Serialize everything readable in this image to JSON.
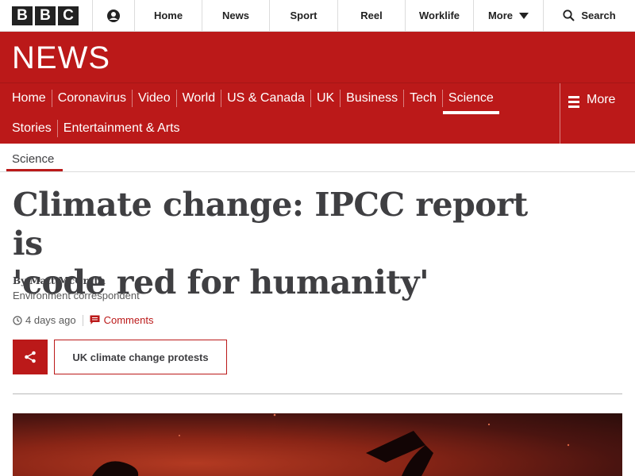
{
  "topbar": {
    "logo_letters": [
      "B",
      "B",
      "C"
    ],
    "nav": [
      "Home",
      "News",
      "Sport",
      "Reel",
      "Worklife"
    ],
    "more_label": "More",
    "search_label": "Search"
  },
  "masthead": {
    "title": "NEWS"
  },
  "section_nav": {
    "row1": [
      "Home",
      "Coronavirus",
      "Video",
      "World",
      "US & Canada",
      "UK",
      "Business",
      "Tech",
      "Science"
    ],
    "row2": [
      "Stories",
      "Entertainment & Arts"
    ],
    "active": "Science",
    "more_label": "More"
  },
  "breadcrumb": "Science",
  "article": {
    "headline_line1": "Climate change: IPCC report is",
    "headline_line2": "'code red for humanity'",
    "byline": "By Matt McGrath",
    "role": "Environment correspondent",
    "time": "4 days ago",
    "comments_label": "Comments",
    "tag_label": "UK climate change protests"
  },
  "colors": {
    "accent": "#bb1919",
    "text": "#3f3f42"
  },
  "icons": [
    "account-icon",
    "chevron-down-icon",
    "search-icon",
    "hamburger-icon",
    "clock-icon",
    "comment-icon",
    "share-icon"
  ]
}
